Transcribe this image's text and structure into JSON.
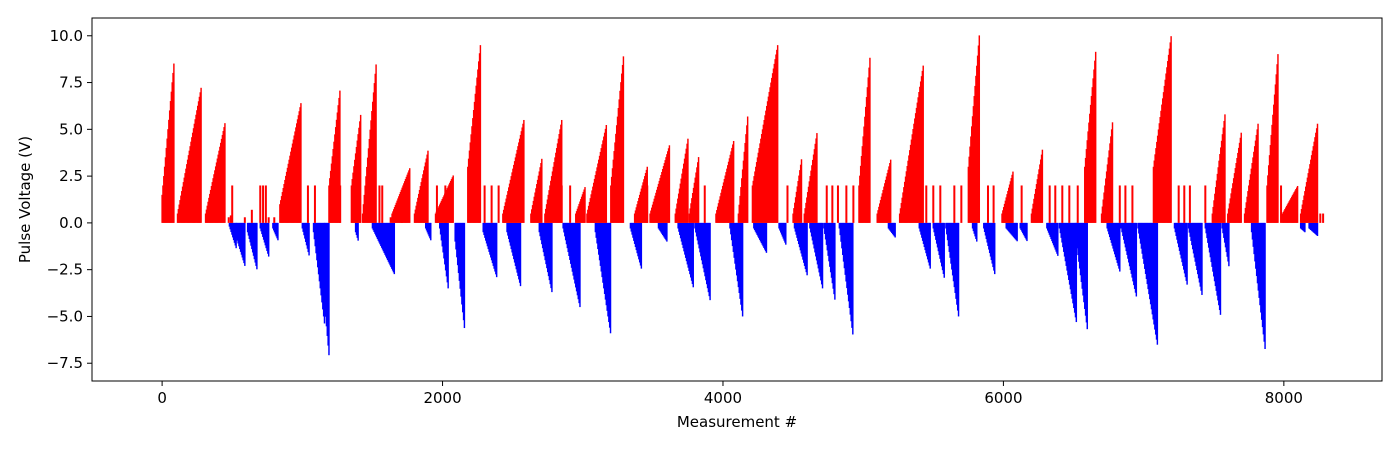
{
  "chart_data": {
    "type": "bar",
    "title": "",
    "xlabel": "Measurement #",
    "ylabel": "Pulse Voltage (V)",
    "xlim": [
      -500,
      8700
    ],
    "ylim": [
      -8.45,
      10.95
    ],
    "grid": false,
    "legend": "none",
    "xticks": [
      0,
      2000,
      4000,
      6000,
      8000
    ],
    "xtick_labels": [
      "0",
      "2000",
      "4000",
      "6000",
      "8000"
    ],
    "yticks": [
      -7.5,
      -5.0,
      -2.5,
      0.0,
      2.5,
      5.0,
      7.5,
      10.0
    ],
    "ytick_labels": [
      "−7.5",
      "−5.0",
      "−2.5",
      "0.0",
      "2.5",
      "5.0",
      "7.5",
      "10.0"
    ],
    "colors": {
      "positive": "#ff0000",
      "negative": "#0000ff",
      "axes": "#000000"
    },
    "positive_ramps": [
      [
        0,
        85,
        1.5,
        8.6
      ],
      [
        110,
        280,
        0.5,
        7.3
      ],
      [
        310,
        450,
        0.5,
        5.4
      ],
      [
        840,
        990,
        1.0,
        6.4
      ],
      [
        1190,
        1270,
        2.0,
        7.2
      ],
      [
        1350,
        1420,
        2.0,
        6.0
      ],
      [
        1430,
        1530,
        0.5,
        8.8
      ],
      [
        1640,
        1770,
        0.5,
        3.0
      ],
      [
        1800,
        1900,
        0.5,
        4.0
      ],
      [
        1950,
        2080,
        0.5,
        2.6
      ],
      [
        2180,
        2270,
        3.0,
        9.5
      ],
      [
        2430,
        2580,
        0.5,
        5.5
      ],
      [
        2630,
        2710,
        0.5,
        3.5
      ],
      [
        2730,
        2850,
        0.5,
        5.5
      ],
      [
        2950,
        3020,
        0.5,
        2.0
      ],
      [
        3030,
        3170,
        0.5,
        5.3
      ],
      [
        3200,
        3290,
        2.0,
        8.9
      ],
      [
        3370,
        3460,
        0.5,
        3.0
      ],
      [
        3480,
        3620,
        0.5,
        4.2
      ],
      [
        3660,
        3750,
        0.5,
        4.5
      ],
      [
        3760,
        3830,
        0.5,
        3.7
      ],
      [
        3950,
        4080,
        0.5,
        4.5
      ],
      [
        4110,
        4180,
        0.5,
        6.0
      ],
      [
        4210,
        4390,
        2.0,
        9.5
      ],
      [
        4500,
        4560,
        0.5,
        3.4
      ],
      [
        4580,
        4670,
        0.5,
        4.8
      ],
      [
        4970,
        5050,
        2.0,
        9.0
      ],
      [
        5100,
        5200,
        0.5,
        3.5
      ],
      [
        5260,
        5430,
        0.5,
        8.5
      ],
      [
        5750,
        5830,
        3.0,
        10.2
      ],
      [
        5990,
        6070,
        0.5,
        2.8
      ],
      [
        6200,
        6280,
        0.5,
        4.0
      ],
      [
        6580,
        6660,
        3.0,
        9.3
      ],
      [
        6700,
        6780,
        0.5,
        5.5
      ],
      [
        7070,
        7200,
        3.0,
        10.2
      ],
      [
        7490,
        7580,
        0.5,
        5.8
      ],
      [
        7600,
        7700,
        0.5,
        5.0
      ],
      [
        7720,
        7820,
        0.5,
        5.5
      ],
      [
        7880,
        7960,
        2.0,
        9.2
      ],
      [
        7990,
        8100,
        0.5,
        2.0
      ],
      [
        8120,
        8240,
        0.5,
        5.3
      ]
    ],
    "negative_ramps": [
      [
        480,
        530,
        0.2,
        1.4
      ],
      [
        530,
        590,
        0.8,
        2.3
      ],
      [
        610,
        680,
        0.5,
        2.6
      ],
      [
        700,
        760,
        0.3,
        1.8
      ],
      [
        790,
        830,
        0.3,
        1.0
      ],
      [
        1000,
        1050,
        0.3,
        1.8
      ],
      [
        1080,
        1160,
        0.5,
        5.5
      ],
      [
        1160,
        1195,
        4.5,
        7.5
      ],
      [
        1380,
        1400,
        0.5,
        1.0
      ],
      [
        1500,
        1660,
        0.3,
        2.8
      ],
      [
        1880,
        1920,
        0.3,
        1.0
      ],
      [
        1980,
        2040,
        0.3,
        3.5
      ],
      [
        2090,
        2160,
        1.0,
        5.9
      ],
      [
        2290,
        2390,
        0.5,
        3.0
      ],
      [
        2460,
        2560,
        0.5,
        3.5
      ],
      [
        2690,
        2780,
        0.5,
        3.7
      ],
      [
        2860,
        2980,
        0.3,
        4.5
      ],
      [
        3090,
        3200,
        0.5,
        6.0
      ],
      [
        3340,
        3420,
        0.3,
        2.5
      ],
      [
        3540,
        3600,
        0.3,
        1.0
      ],
      [
        3680,
        3790,
        0.3,
        3.5
      ],
      [
        3800,
        3910,
        0.3,
        4.2
      ],
      [
        4050,
        4140,
        0.3,
        5.0
      ],
      [
        4220,
        4310,
        0.3,
        1.6
      ],
      [
        4400,
        4450,
        0.3,
        1.2
      ],
      [
        4510,
        4600,
        0.3,
        2.8
      ],
      [
        4620,
        4710,
        0.3,
        3.5
      ],
      [
        4720,
        4800,
        0.3,
        4.2
      ],
      [
        4830,
        4930,
        0.3,
        6.2
      ],
      [
        5180,
        5230,
        0.3,
        0.8
      ],
      [
        5400,
        5480,
        0.3,
        2.5
      ],
      [
        5500,
        5580,
        0.3,
        3.0
      ],
      [
        5590,
        5680,
        0.3,
        5.0
      ],
      [
        5780,
        5810,
        0.3,
        1.0
      ],
      [
        5860,
        5940,
        0.3,
        2.8
      ],
      [
        6020,
        6100,
        0.3,
        1.0
      ],
      [
        6120,
        6170,
        0.3,
        1.0
      ],
      [
        6310,
        6390,
        0.3,
        1.8
      ],
      [
        6400,
        6520,
        0.3,
        5.3
      ],
      [
        6520,
        6600,
        1.0,
        5.8
      ],
      [
        6740,
        6830,
        0.3,
        2.6
      ],
      [
        6840,
        6950,
        0.3,
        4.0
      ],
      [
        6960,
        7100,
        0.3,
        6.6
      ],
      [
        7220,
        7310,
        0.3,
        3.3
      ],
      [
        7320,
        7420,
        0.3,
        4.0
      ],
      [
        7440,
        7550,
        0.3,
        5.0
      ],
      [
        7560,
        7610,
        0.3,
        2.4
      ],
      [
        7770,
        7870,
        0.5,
        7.0
      ],
      [
        8120,
        8150,
        0.3,
        0.5
      ],
      [
        8180,
        8240,
        0.3,
        0.7
      ]
    ],
    "positive_spikes": [
      [
        475,
        0.3
      ],
      [
        490,
        0.4
      ],
      [
        500,
        2.0
      ],
      [
        590,
        0.3
      ],
      [
        640,
        0.7
      ],
      [
        700,
        2.0
      ],
      [
        720,
        2.0
      ],
      [
        740,
        2.0
      ],
      [
        760,
        0.3
      ],
      [
        800,
        0.3
      ],
      [
        1040,
        2.0
      ],
      [
        1090,
        2.0
      ],
      [
        1270,
        2.0
      ],
      [
        1550,
        2.0
      ],
      [
        1570,
        2.0
      ],
      [
        1630,
        0.3
      ],
      [
        1710,
        0.3
      ],
      [
        1960,
        2.0
      ],
      [
        2020,
        2.0
      ],
      [
        2300,
        2.0
      ],
      [
        2350,
        2.0
      ],
      [
        2400,
        2.0
      ],
      [
        2850,
        2.0
      ],
      [
        2910,
        2.0
      ],
      [
        3460,
        2.0
      ],
      [
        3870,
        2.0
      ],
      [
        4460,
        2.0
      ],
      [
        4740,
        2.0
      ],
      [
        4780,
        2.0
      ],
      [
        4820,
        2.0
      ],
      [
        4880,
        2.0
      ],
      [
        4930,
        2.0
      ],
      [
        5450,
        2.0
      ],
      [
        5500,
        2.0
      ],
      [
        5550,
        2.0
      ],
      [
        5650,
        2.0
      ],
      [
        5700,
        2.0
      ],
      [
        5890,
        2.0
      ],
      [
        5930,
        2.0
      ],
      [
        6130,
        2.0
      ],
      [
        6330,
        2.0
      ],
      [
        6370,
        2.0
      ],
      [
        6420,
        2.0
      ],
      [
        6470,
        2.0
      ],
      [
        6530,
        2.0
      ],
      [
        6830,
        2.0
      ],
      [
        6870,
        2.0
      ],
      [
        6920,
        2.0
      ],
      [
        7250,
        2.0
      ],
      [
        7290,
        2.0
      ],
      [
        7330,
        2.0
      ],
      [
        7440,
        2.0
      ],
      [
        7980,
        2.0
      ],
      [
        8260,
        0.5
      ],
      [
        8280,
        0.5
      ]
    ]
  }
}
